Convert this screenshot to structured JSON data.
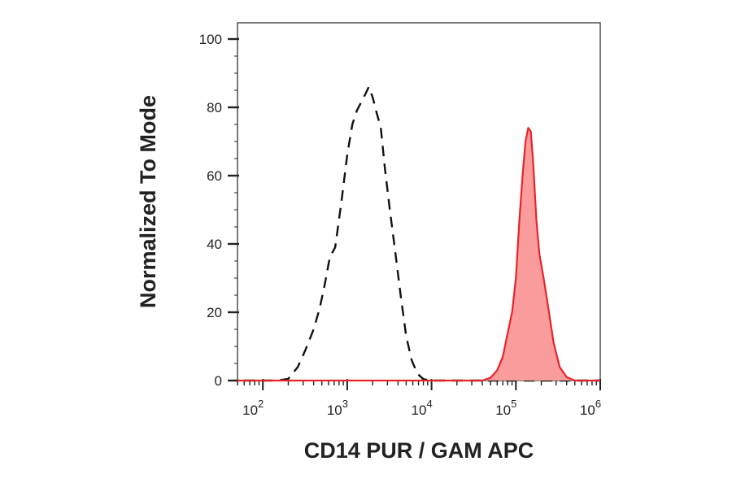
{
  "chart_data": {
    "type": "area",
    "title": "",
    "xlabel": "CD14 PUR / GAM APC",
    "ylabel": "Normalized To Mode",
    "x_scale": "log",
    "xlim": [
      50,
      1000000
    ],
    "ylim": [
      0,
      100
    ],
    "x_ticks": [
      {
        "value": 100,
        "base": "10",
        "exp": "2"
      },
      {
        "value": 1000,
        "base": "10",
        "exp": "3"
      },
      {
        "value": 10000,
        "base": "10",
        "exp": "4"
      },
      {
        "value": 100000,
        "base": "10",
        "exp": "5"
      },
      {
        "value": 1000000,
        "base": "10",
        "exp": "6"
      }
    ],
    "y_ticks": [
      {
        "value": 0,
        "label": "0"
      },
      {
        "value": 20,
        "label": "20"
      },
      {
        "value": 40,
        "label": "40"
      },
      {
        "value": 60,
        "label": "60"
      },
      {
        "value": 80,
        "label": "80"
      },
      {
        "value": 100,
        "label": "100"
      }
    ],
    "grid": false,
    "series": [
      {
        "style": "dashed-line",
        "color": "#111111",
        "fill": false,
        "points": [
          [
            60,
            0
          ],
          [
            150,
            0
          ],
          [
            200,
            0.5
          ],
          [
            260,
            4
          ],
          [
            320,
            9
          ],
          [
            400,
            15
          ],
          [
            470,
            21
          ],
          [
            540,
            28
          ],
          [
            620,
            36
          ],
          [
            720,
            39
          ],
          [
            850,
            52
          ],
          [
            1000,
            66
          ],
          [
            1150,
            75
          ],
          [
            1300,
            79
          ],
          [
            1500,
            82
          ],
          [
            1650,
            84
          ],
          [
            1800,
            86
          ],
          [
            2000,
            83
          ],
          [
            2200,
            79
          ],
          [
            2500,
            74
          ],
          [
            2800,
            62
          ],
          [
            3200,
            50
          ],
          [
            3700,
            38
          ],
          [
            4300,
            25
          ],
          [
            5000,
            13
          ],
          [
            5800,
            6
          ],
          [
            6800,
            2
          ],
          [
            8000,
            0.4
          ],
          [
            10000,
            0
          ],
          [
            1000000,
            0
          ]
        ]
      },
      {
        "style": "filled-area",
        "color": "#e8242a",
        "fill_color": "#fa9c9c",
        "fill": true,
        "points": [
          [
            50,
            0
          ],
          [
            40000,
            0
          ],
          [
            50000,
            0.8
          ],
          [
            60000,
            3
          ],
          [
            70000,
            7
          ],
          [
            80000,
            14
          ],
          [
            90000,
            20
          ],
          [
            100000,
            30
          ],
          [
            110000,
            47
          ],
          [
            120000,
            60
          ],
          [
            130000,
            70
          ],
          [
            140000,
            74
          ],
          [
            150000,
            73
          ],
          [
            160000,
            64
          ],
          [
            175000,
            47
          ],
          [
            190000,
            37
          ],
          [
            210000,
            31
          ],
          [
            240000,
            22
          ],
          [
            280000,
            11
          ],
          [
            330000,
            4
          ],
          [
            400000,
            1
          ],
          [
            500000,
            0
          ],
          [
            1000000,
            0
          ]
        ]
      }
    ]
  }
}
